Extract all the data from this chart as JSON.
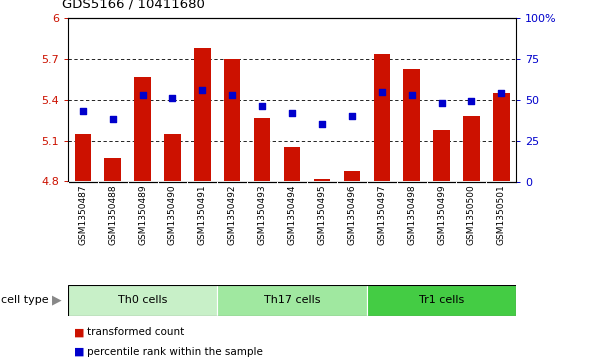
{
  "title": "GDS5166 / 10411680",
  "samples": [
    "GSM1350487",
    "GSM1350488",
    "GSM1350489",
    "GSM1350490",
    "GSM1350491",
    "GSM1350492",
    "GSM1350493",
    "GSM1350494",
    "GSM1350495",
    "GSM1350496",
    "GSM1350497",
    "GSM1350498",
    "GSM1350499",
    "GSM1350500",
    "GSM1350501"
  ],
  "transformed_count": [
    5.15,
    4.97,
    5.57,
    5.15,
    5.78,
    5.7,
    5.27,
    5.05,
    4.82,
    4.88,
    5.74,
    5.63,
    5.18,
    5.28,
    5.45
  ],
  "percentile_rank": [
    43,
    38,
    53,
    51,
    56,
    53,
    46,
    42,
    35,
    40,
    55,
    53,
    48,
    49,
    54
  ],
  "cell_groups": [
    {
      "label": "Th0 cells",
      "start": 0,
      "end": 5,
      "color": "#c8f0c8"
    },
    {
      "label": "Th17 cells",
      "start": 5,
      "end": 10,
      "color": "#a0e8a0"
    },
    {
      "label": "Tr1 cells",
      "start": 10,
      "end": 15,
      "color": "#44cc44"
    }
  ],
  "ylim_left": [
    4.8,
    6.0
  ],
  "ylim_right": [
    0,
    100
  ],
  "yticks_left": [
    4.8,
    5.1,
    5.4,
    5.7,
    6.0
  ],
  "yticks_right": [
    0,
    25,
    50,
    75,
    100
  ],
  "ytick_labels_left": [
    "4.8",
    "5.1",
    "5.4",
    "5.7",
    "6"
  ],
  "ytick_labels_right": [
    "0",
    "25",
    "50",
    "75",
    "100%"
  ],
  "bar_color": "#cc1100",
  "dot_color": "#0000cc",
  "bg_color": "#ffffff",
  "tick_area_bg": "#c8c8c8",
  "legend_bar_label": "transformed count",
  "legend_dot_label": "percentile rank within the sample",
  "cell_type_label": "cell type"
}
